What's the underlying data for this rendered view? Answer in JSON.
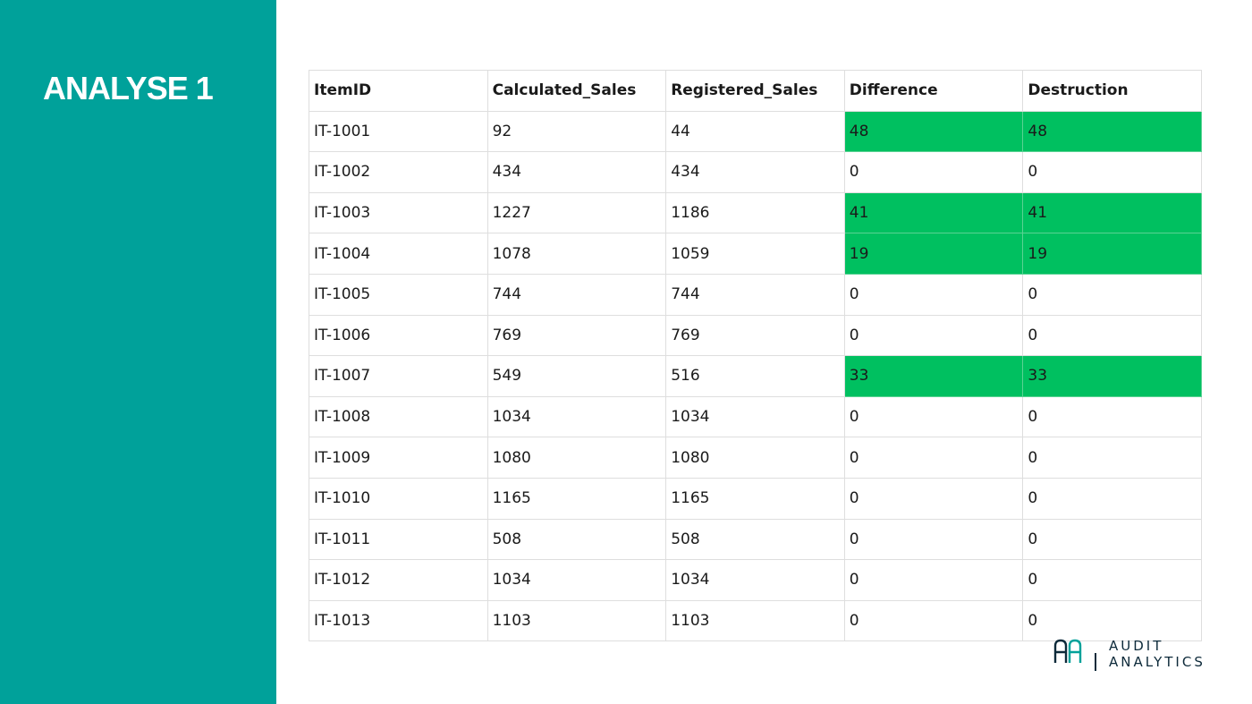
{
  "slide": {
    "title": "ANALYSE 1"
  },
  "table": {
    "headers": [
      "ItemID",
      "Calculated_Sales",
      "Registered_Sales",
      "Difference",
      "Destruction"
    ],
    "rows": [
      [
        "IT-1001",
        "92",
        "44",
        "48",
        "48"
      ],
      [
        "IT-1002",
        "434",
        "434",
        "0",
        "0"
      ],
      [
        "IT-1003",
        "1227",
        "1186",
        "41",
        "41"
      ],
      [
        "IT-1004",
        "1078",
        "1059",
        "19",
        "19"
      ],
      [
        "IT-1005",
        "744",
        "744",
        "0",
        "0"
      ],
      [
        "IT-1006",
        "769",
        "769",
        "0",
        "0"
      ],
      [
        "IT-1007",
        "549",
        "516",
        "33",
        "33"
      ],
      [
        "IT-1008",
        "1034",
        "1034",
        "0",
        "0"
      ],
      [
        "IT-1009",
        "1080",
        "1080",
        "0",
        "0"
      ],
      [
        "IT-1010",
        "1165",
        "1165",
        "0",
        "0"
      ],
      [
        "IT-1011",
        "508",
        "508",
        "0",
        "0"
      ],
      [
        "IT-1012",
        "1034",
        "1034",
        "0",
        "0"
      ],
      [
        "IT-1013",
        "1103",
        "1103",
        "0",
        "0"
      ]
    ]
  },
  "logo": {
    "line1": "AUDIT",
    "line2": "ANALYTICS"
  },
  "colors": {
    "sidebar": "#00a19a",
    "highlight": "#00c060",
    "logo_dark": "#0d2a3a",
    "logo_accent": "#00a19a"
  }
}
